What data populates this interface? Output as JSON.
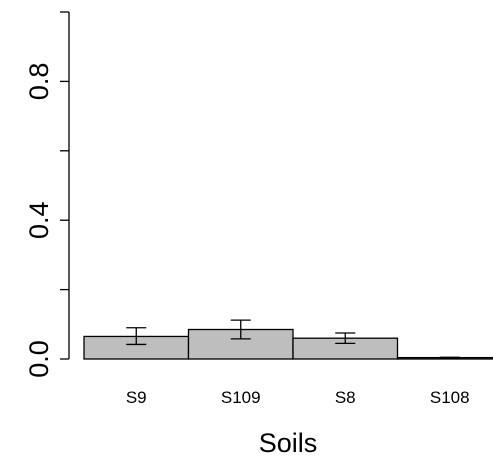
{
  "chart_data": {
    "type": "bar",
    "title": "",
    "xlabel": "Soils",
    "ylabel": "",
    "categories": [
      "S9",
      "S109",
      "S8",
      "S108"
    ],
    "values": [
      0.065,
      0.085,
      0.06,
      0.004
    ],
    "error_low": [
      0.042,
      0.058,
      0.045,
      0.003
    ],
    "error_high": [
      0.09,
      0.112,
      0.075,
      0.005
    ],
    "ylim": [
      0,
      1
    ],
    "y_ticks": [
      0.0,
      0.2,
      0.4,
      0.6,
      0.8,
      1.0
    ],
    "y_tick_labels": [
      "0.0",
      "",
      "0.4",
      "",
      "0.8",
      ""
    ],
    "bar_color": "#bebebe",
    "grid": false,
    "legend": "none"
  }
}
